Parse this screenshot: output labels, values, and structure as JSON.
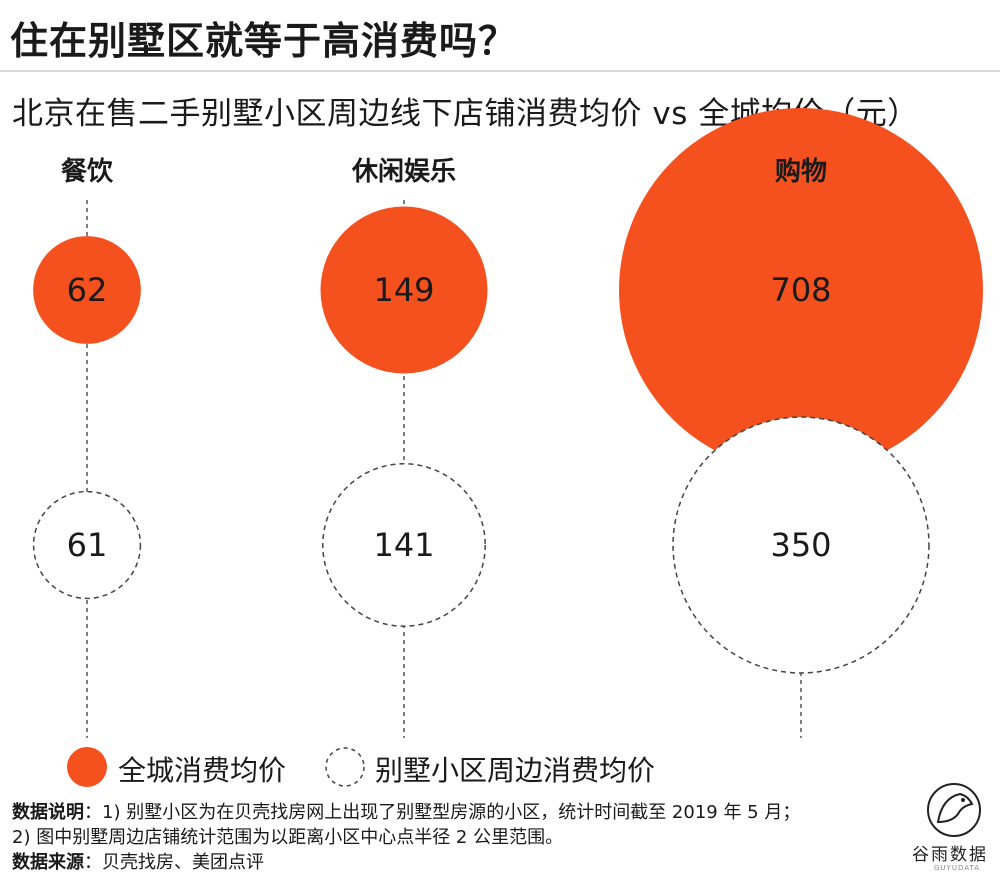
{
  "header": {
    "title": "住在别墅区就等于高消费吗？",
    "subtitle": "北京在售二手别墅小区周边线下店铺消费均价 vs 全城均价（元）"
  },
  "colors": {
    "city_fill": "#f4511e",
    "near_stroke": "#444444",
    "axis_line": "#555555",
    "rule": "#d9d9d9"
  },
  "chart_data": {
    "type": "bubble",
    "categories": [
      "餐饮",
      "休闲娱乐",
      "购物"
    ],
    "series": [
      {
        "name": "全城消费均价",
        "values": [
          62,
          149,
          708
        ]
      },
      {
        "name": "别墅小区周边消费均价",
        "values": [
          61,
          141,
          350
        ]
      }
    ],
    "legend_position": "bottom-left"
  },
  "legend": {
    "city_label": "全城消费均价",
    "near_label": "别墅小区周边消费均价"
  },
  "notes": {
    "label1": "数据说明",
    "line1": "：1) 别墅小区为在贝壳找房网上出现了别墅型房源的小区，统计时间截至 2019 年 5 月；",
    "line2": "2) 图中别墅周边店铺统计范围为以距离小区中心点半径 2 公里范围。",
    "label2": "数据来源",
    "line3": "：贝壳找房、美团点评"
  },
  "logo": {
    "name": "谷雨数据",
    "sub": "GUYUDATA",
    "icon": "bird-icon"
  }
}
